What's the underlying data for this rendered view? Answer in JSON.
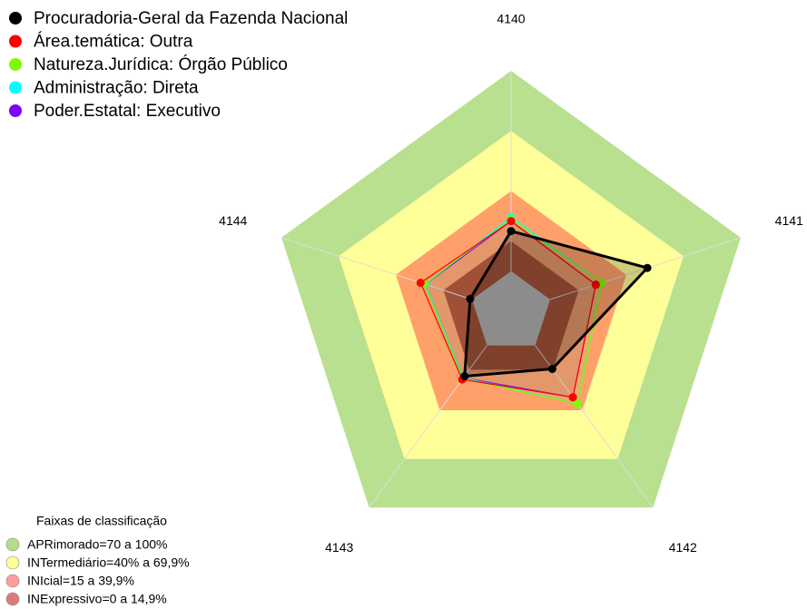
{
  "chart_data": {
    "type": "radar",
    "categories": [
      "4140",
      "4141",
      "4142",
      "4143",
      "4144"
    ],
    "ylim": [
      0,
      100
    ],
    "series": [
      {
        "name": "Procuradoria-Geral da Fazenda Nacional",
        "color": "#000000",
        "values": [
          20,
          51,
          14.5,
          19,
          1
        ]
      },
      {
        "name": "Área.temática: Outra",
        "color": "#ff0000",
        "values": [
          25,
          24,
          32,
          21,
          27
        ]
      },
      {
        "name": "Natureza.Jurídica: Órgão Público",
        "color": "#7cfc00",
        "values": [
          26,
          27,
          36,
          20.5,
          25
        ]
      },
      {
        "name": "Administração: Direta",
        "color": "#00ffff",
        "values": [
          27,
          27,
          36,
          20,
          24.5
        ]
      },
      {
        "name": "Poder.Estatal: Executivo",
        "color": "#8000ff",
        "values": [
          25,
          24,
          32,
          20,
          24.5
        ]
      }
    ],
    "bands_title": "Faixas de classificação",
    "bands": [
      {
        "name": "APRimorado=70 a 100%",
        "from": 70,
        "to": 100,
        "color": "#b9e08f",
        "legend_color": "#b5de8c"
      },
      {
        "name": "INTermediário=40% a 69,9%",
        "from": 40,
        "to": 70,
        "color": "#ffff99",
        "legend_color": "#ffff99"
      },
      {
        "name": "INIcial=15 a 39,9%",
        "from": 15,
        "to": 40,
        "color": "#ffa06a",
        "legend_color": "#ff9c9c"
      },
      {
        "name": "INExpressivo=0 a 14,9%",
        "from": 0,
        "to": 15,
        "color": "#a84428",
        "legend_color": "#dd7a7a"
      }
    ]
  }
}
